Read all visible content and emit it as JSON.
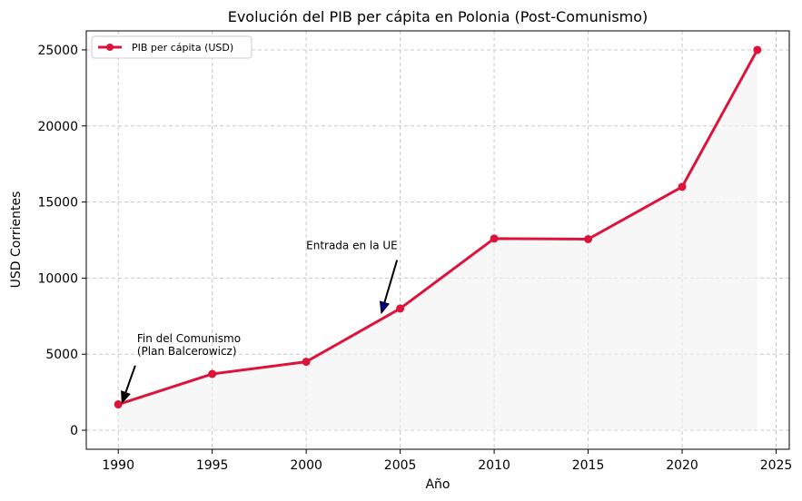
{
  "chart_data": {
    "type": "line",
    "title": "Evolución del PIB per cápita en Polonia (Post-Comunismo)",
    "xlabel": "Año",
    "ylabel": "USD Corrientes",
    "x": [
      1990,
      1995,
      2000,
      2005,
      2010,
      2015,
      2020,
      2024
    ],
    "series": [
      {
        "name": "PIB per cápita (USD)",
        "values": [
          1700,
          3700,
          4500,
          8000,
          12600,
          12560,
          16000,
          25000
        ],
        "color": "#dc143c"
      }
    ],
    "xlim": [
      1988.3,
      2025.7
    ],
    "ylim": [
      -1250,
      26250
    ],
    "xticks": [
      1990,
      1995,
      2000,
      2005,
      2010,
      2015,
      2020,
      2025
    ],
    "yticks": [
      0,
      5000,
      10000,
      15000,
      20000,
      25000
    ],
    "grid": true,
    "legend_position": "top-left",
    "fill_under": true,
    "annotations": [
      {
        "lines": [
          "Fin del Comunismo",
          "(Plan Balcerowicz)"
        ],
        "text_at": [
          1991,
          5800
        ],
        "arrow_to": [
          1990.2,
          1800
        ],
        "arrow_color": "#000000"
      },
      {
        "lines": [
          "Entrada en la UE"
        ],
        "text_at": [
          2000,
          11900
        ],
        "arrow_to": [
          2004,
          7700
        ],
        "arrow_color": "#00008b"
      }
    ]
  }
}
